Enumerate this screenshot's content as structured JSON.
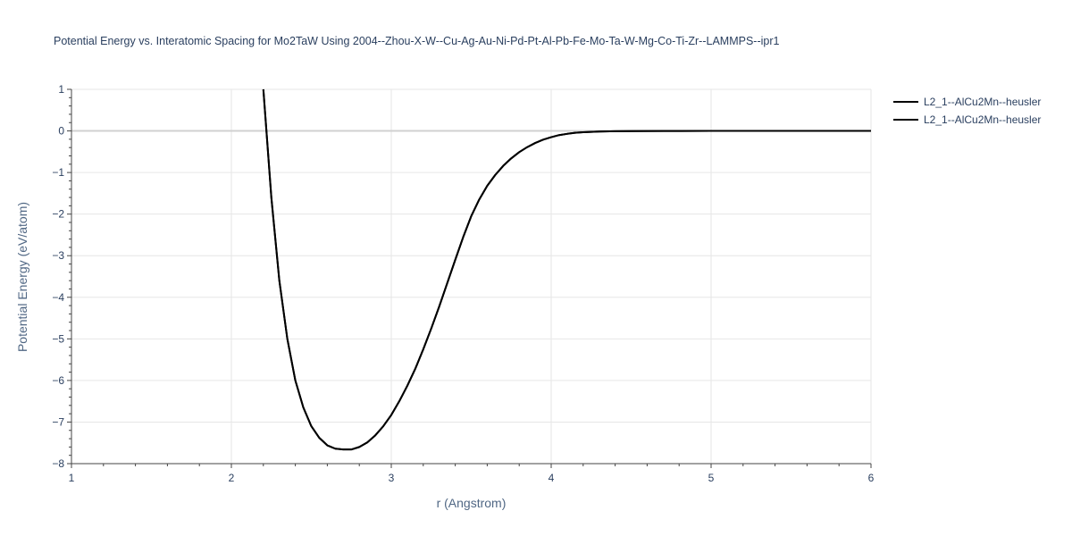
{
  "chart_data": {
    "type": "line",
    "title": "Potential Energy vs. Interatomic Spacing for Mo2TaW Using 2004--Zhou-X-W--Cu-Ag-Au-Ni-Pd-Pt-Al-Pb-Fe-Mo-Ta-W-Mg-Co-Ti-Zr--LAMMPS--ipr1",
    "xlabel": "r (Angstrom)",
    "ylabel": "Potential Energy (eV/atom)",
    "xlim": [
      1,
      6
    ],
    "ylim": [
      -8,
      1
    ],
    "xticks": [
      1,
      2,
      3,
      4,
      5,
      6
    ],
    "xtick_labels": [
      "1",
      "2",
      "3",
      "4",
      "5",
      "6"
    ],
    "yticks": [
      1,
      0,
      -1,
      -2,
      -3,
      -4,
      -5,
      -6,
      -7,
      -8
    ],
    "ytick_labels": [
      "1",
      "0",
      "−1",
      "−2",
      "−3",
      "−4",
      "−5",
      "−6",
      "−7",
      "−8"
    ],
    "grid": true,
    "legend_position": "top-right",
    "series": [
      {
        "name": "L2_1--AlCu2Mn--heusler",
        "color": "#000000",
        "x": [
          2.2,
          2.25,
          2.3,
          2.35,
          2.4,
          2.45,
          2.5,
          2.55,
          2.6,
          2.65,
          2.7,
          2.75,
          2.8,
          2.85,
          2.9,
          2.95,
          3.0,
          3.05,
          3.1,
          3.15,
          3.2,
          3.25,
          3.3,
          3.35,
          3.4,
          3.45,
          3.5,
          3.55,
          3.6,
          3.65,
          3.7,
          3.75,
          3.8,
          3.85,
          3.9,
          3.95,
          4.0,
          4.05,
          4.1,
          4.15,
          4.2,
          4.3,
          4.4,
          4.5,
          4.7,
          5.0,
          5.5,
          6.0
        ],
        "y": [
          1.0,
          -1.6,
          -3.6,
          -5.0,
          -6.0,
          -6.65,
          -7.1,
          -7.38,
          -7.56,
          -7.64,
          -7.66,
          -7.66,
          -7.6,
          -7.49,
          -7.32,
          -7.1,
          -6.83,
          -6.5,
          -6.13,
          -5.72,
          -5.25,
          -4.75,
          -4.22,
          -3.66,
          -3.1,
          -2.55,
          -2.05,
          -1.65,
          -1.32,
          -1.06,
          -0.84,
          -0.66,
          -0.51,
          -0.39,
          -0.29,
          -0.21,
          -0.15,
          -0.1,
          -0.07,
          -0.045,
          -0.03,
          -0.015,
          -0.007,
          -0.003,
          -0.001,
          0.0,
          0.0,
          0.0
        ]
      },
      {
        "name": "L2_1--AlCu2Mn--heusler",
        "color": "#000000",
        "x": [
          2.2,
          2.25,
          2.3,
          2.35,
          2.4,
          2.45,
          2.5,
          2.55,
          2.6,
          2.65,
          2.7,
          2.75,
          2.8,
          2.85,
          2.9,
          2.95,
          3.0,
          3.05,
          3.1,
          3.15,
          3.2,
          3.25,
          3.3,
          3.35,
          3.4,
          3.45,
          3.5,
          3.55,
          3.6,
          3.65,
          3.7,
          3.75,
          3.8,
          3.85,
          3.9,
          3.95,
          4.0,
          4.05,
          4.1,
          4.15,
          4.2,
          4.3,
          4.4,
          4.5,
          4.7,
          5.0,
          5.5,
          6.0
        ],
        "y": [
          1.0,
          -1.6,
          -3.6,
          -5.0,
          -6.0,
          -6.65,
          -7.1,
          -7.38,
          -7.56,
          -7.64,
          -7.66,
          -7.66,
          -7.6,
          -7.49,
          -7.32,
          -7.1,
          -6.83,
          -6.5,
          -6.13,
          -5.72,
          -5.25,
          -4.75,
          -4.22,
          -3.66,
          -3.1,
          -2.55,
          -2.05,
          -1.65,
          -1.32,
          -1.06,
          -0.84,
          -0.66,
          -0.51,
          -0.39,
          -0.29,
          -0.21,
          -0.15,
          -0.1,
          -0.07,
          -0.045,
          -0.03,
          -0.015,
          -0.007,
          -0.003,
          -0.001,
          0.0,
          0.0,
          0.0
        ]
      }
    ]
  }
}
